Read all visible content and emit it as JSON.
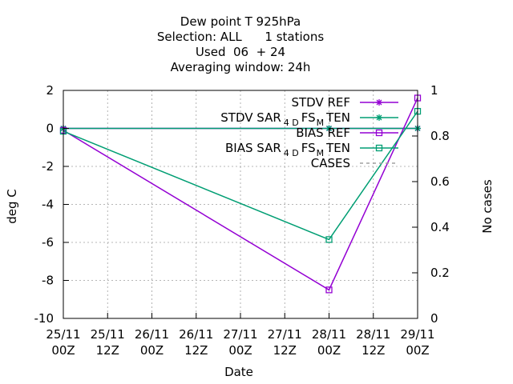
{
  "chart_data": {
    "type": "line",
    "title_lines": [
      "Dew point T 925hPa",
      "Selection: ALL      1 stations",
      "Used  06  + 24",
      "Averaging window: 24h"
    ],
    "xlabel": "Date",
    "ylabel": "deg C",
    "y2label": "No cases",
    "ylim": [
      -10,
      2
    ],
    "y2lim": [
      0,
      1
    ],
    "yticks": [
      -10,
      -8,
      -6,
      -4,
      -2,
      0,
      2
    ],
    "y2ticks": [
      0,
      0.2,
      0.4,
      0.6,
      0.8,
      1
    ],
    "y2tick_labels": [
      "0",
      "0.2",
      "0.4",
      "0.6",
      "0.8",
      "1"
    ],
    "xlim": [
      0,
      96
    ],
    "xticks": [
      {
        "x": 0,
        "l1": "25/11",
        "l2": "00Z"
      },
      {
        "x": 12,
        "l1": "25/11",
        "l2": "12Z"
      },
      {
        "x": 24,
        "l1": "26/11",
        "l2": "00Z"
      },
      {
        "x": 36,
        "l1": "26/11",
        "l2": "12Z"
      },
      {
        "x": 48,
        "l1": "27/11",
        "l2": "00Z"
      },
      {
        "x": 60,
        "l1": "27/11",
        "l2": "12Z"
      },
      {
        "x": 72,
        "l1": "28/11",
        "l2": "00Z"
      },
      {
        "x": 84,
        "l1": "28/11",
        "l2": "12Z"
      },
      {
        "x": 96,
        "l1": "29/11",
        "l2": "00Z"
      }
    ],
    "grid": true,
    "legend_position": "top-right",
    "series": [
      {
        "name": "STDV REF",
        "legend": [
          "STDV REF"
        ],
        "color": "#9400d3",
        "marker": "star",
        "x": [
          0,
          72,
          96
        ],
        "y": [
          0,
          0,
          0
        ]
      },
      {
        "name": "STDV SAR_4D FS_M TEN",
        "legend": [
          "STDV SAR",
          "4 D",
          "FS",
          "M",
          "TEN"
        ],
        "color": "#009e73",
        "marker": "star",
        "x": [
          0,
          72,
          96
        ],
        "y": [
          0,
          0,
          0
        ]
      },
      {
        "name": "BIAS REF",
        "legend": [
          "BIAS REF"
        ],
        "color": "#9400d3",
        "marker": "square",
        "x": [
          0,
          72,
          96
        ],
        "y": [
          -0.1,
          -8.5,
          1.6
        ]
      },
      {
        "name": "BIAS SAR_4D FS_M TEN",
        "legend": [
          "BIAS SAR",
          "4 D",
          "FS",
          "M",
          "TEN"
        ],
        "color": "#009e73",
        "marker": "square",
        "x": [
          0,
          72,
          96
        ],
        "y": [
          -0.15,
          -5.85,
          0.9
        ]
      },
      {
        "name": "CASES",
        "legend": [
          "CASES"
        ],
        "color": "#a0a0a0",
        "marker": "none",
        "dashed": true,
        "x": [],
        "y": []
      }
    ]
  }
}
